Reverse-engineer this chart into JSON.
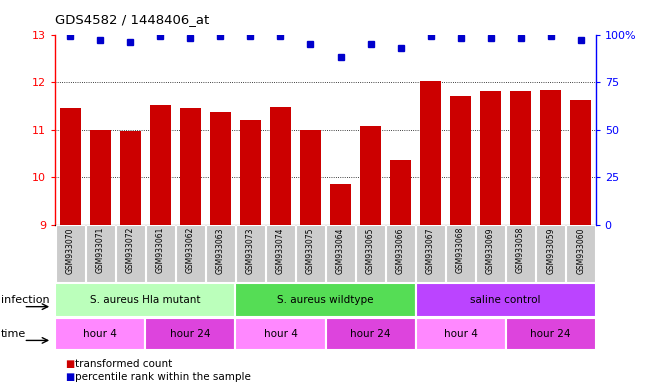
{
  "title": "GDS4582 / 1448406_at",
  "samples": [
    "GSM933070",
    "GSM933071",
    "GSM933072",
    "GSM933061",
    "GSM933062",
    "GSM933063",
    "GSM933073",
    "GSM933074",
    "GSM933075",
    "GSM933064",
    "GSM933065",
    "GSM933066",
    "GSM933067",
    "GSM933068",
    "GSM933069",
    "GSM933058",
    "GSM933059",
    "GSM933060"
  ],
  "bar_values": [
    11.45,
    11.0,
    10.98,
    11.52,
    11.45,
    11.38,
    11.2,
    11.48,
    11.0,
    9.85,
    11.08,
    10.35,
    12.02,
    11.7,
    11.82,
    11.82,
    11.83,
    11.62
  ],
  "dot_values": [
    99,
    97,
    96,
    99,
    98,
    99,
    99,
    99,
    95,
    88,
    95,
    93,
    99,
    98,
    98,
    98,
    99,
    97
  ],
  "ylim_left": [
    9,
    13
  ],
  "ylim_right": [
    0,
    100
  ],
  "yticks_left": [
    9,
    10,
    11,
    12,
    13
  ],
  "yticks_right": [
    0,
    25,
    50,
    75,
    100
  ],
  "ytick_right_labels": [
    "0",
    "25",
    "50",
    "75",
    "100%"
  ],
  "bar_color": "#cc0000",
  "dot_color": "#0000cc",
  "grid_color": "#000000",
  "infection_groups": [
    {
      "label": "S. aureus Hla mutant",
      "start": 0,
      "end": 6,
      "color": "#bbffbb"
    },
    {
      "label": "S. aureus wildtype",
      "start": 6,
      "end": 12,
      "color": "#55dd55"
    },
    {
      "label": "saline control",
      "start": 12,
      "end": 18,
      "color": "#bb44ff"
    }
  ],
  "time_groups": [
    {
      "label": "hour 4",
      "start": 0,
      "end": 3,
      "color": "#ff88ff"
    },
    {
      "label": "hour 24",
      "start": 3,
      "end": 6,
      "color": "#dd44dd"
    },
    {
      "label": "hour 4",
      "start": 6,
      "end": 9,
      "color": "#ff88ff"
    },
    {
      "label": "hour 24",
      "start": 9,
      "end": 12,
      "color": "#dd44dd"
    },
    {
      "label": "hour 4",
      "start": 12,
      "end": 15,
      "color": "#ff88ff"
    },
    {
      "label": "hour 24",
      "start": 15,
      "end": 18,
      "color": "#dd44dd"
    }
  ],
  "legend_items": [
    {
      "label": "transformed count",
      "color": "#cc0000"
    },
    {
      "label": "percentile rank within the sample",
      "color": "#0000cc"
    }
  ],
  "xlabel_infection": "infection",
  "xlabel_time": "time",
  "tick_label_bg": "#cccccc"
}
